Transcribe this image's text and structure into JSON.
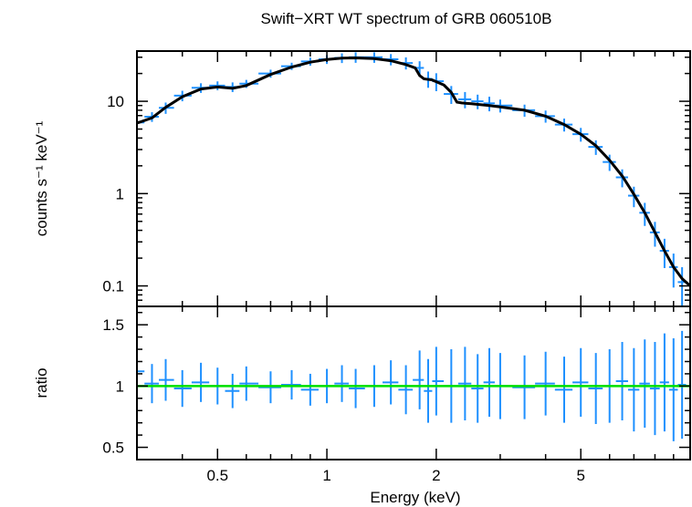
{
  "chart_data": {
    "type": "line",
    "title": "Swift−XRT WT spectrum of GRB 060510B",
    "xlabel": "Energy (keV)",
    "xscale": "log",
    "xlim": [
      0.3,
      10
    ],
    "x_ticks": [
      {
        "value": 0.5,
        "label": "0.5"
      },
      {
        "value": 1,
        "label": "1"
      },
      {
        "value": 2,
        "label": "2"
      },
      {
        "value": 5,
        "label": "5"
      }
    ],
    "panels": [
      {
        "ylabel": "counts s⁻¹ keV⁻¹",
        "yscale": "log",
        "ylim": [
          0.06,
          35
        ],
        "y_ticks": [
          {
            "value": 0.1,
            "label": "0.1"
          },
          {
            "value": 1,
            "label": "1"
          },
          {
            "value": 10,
            "label": "10"
          }
        ],
        "series": [
          {
            "role": "data",
            "color": "#1e90ff",
            "x": [
              0.3,
              0.33,
              0.36,
              0.4,
              0.45,
              0.5,
              0.55,
              0.6,
              0.7,
              0.8,
              0.9,
              1.0,
              1.1,
              1.2,
              1.35,
              1.5,
              1.65,
              1.8,
              1.9,
              2.0,
              2.2,
              2.4,
              2.6,
              2.8,
              3.0,
              3.5,
              4.0,
              4.5,
              5.0,
              5.5,
              6.0,
              6.5,
              7.0,
              7.5,
              8.0,
              8.5,
              9.0,
              9.5,
              10.0
            ],
            "y": [
              5.9,
              6.8,
              8.5,
              11.5,
              14.0,
              14.8,
              14.3,
              15.5,
              20.0,
              24.0,
              27.0,
              28.5,
              29.5,
              30.0,
              30.0,
              28.5,
              26.0,
              23.0,
              17.5,
              16.5,
              12.0,
              10.5,
              10.0,
              9.5,
              9.0,
              8.0,
              6.9,
              5.6,
              4.4,
              3.2,
              2.2,
              1.5,
              0.95,
              0.62,
              0.38,
              0.24,
              0.16,
              0.11,
              0.08
            ],
            "yerr_rel": [
              0.12,
              0.12,
              0.14,
              0.13,
              0.12,
              0.11,
              0.12,
              0.1,
              0.1,
              0.09,
              0.1,
              0.11,
              0.12,
              0.13,
              0.13,
              0.14,
              0.15,
              0.18,
              0.2,
              0.22,
              0.22,
              0.2,
              0.18,
              0.18,
              0.16,
              0.15,
              0.15,
              0.16,
              0.17,
              0.18,
              0.2,
              0.22,
              0.25,
              0.28,
              0.3,
              0.35,
              0.4,
              0.45,
              0.5
            ]
          },
          {
            "role": "model",
            "color": "#000000",
            "x": [
              0.3,
              0.33,
              0.36,
              0.4,
              0.45,
              0.5,
              0.55,
              0.6,
              0.7,
              0.8,
              0.9,
              1.0,
              1.1,
              1.2,
              1.35,
              1.5,
              1.65,
              1.75,
              1.8,
              1.85,
              1.95,
              2.1,
              2.2,
              2.28,
              2.35,
              2.5,
              2.8,
              3.0,
              3.5,
              4.0,
              4.5,
              5.0,
              5.5,
              6.0,
              6.5,
              7.0,
              7.5,
              8.0,
              8.5,
              9.0,
              9.5,
              10.0
            ],
            "y": [
              5.8,
              6.6,
              8.6,
              11.2,
              13.6,
              14.3,
              13.8,
              14.8,
              19.5,
              23.5,
              26.5,
              28.3,
              29.3,
              29.5,
              29.0,
              27.5,
              25.0,
              23.0,
              19.0,
              17.5,
              17.0,
              15.0,
              12.5,
              9.8,
              9.6,
              9.4,
              9.0,
              8.7,
              8.0,
              6.9,
              5.6,
              4.4,
              3.3,
              2.3,
              1.55,
              0.98,
              0.62,
              0.38,
              0.24,
              0.16,
              0.12,
              0.1
            ]
          }
        ]
      },
      {
        "ylabel": "ratio",
        "yscale": "linear",
        "ylim": [
          0.4,
          1.65
        ],
        "y_ticks": [
          {
            "value": 0.5,
            "label": "0.5"
          },
          {
            "value": 1,
            "label": "1"
          },
          {
            "value": 1.5,
            "label": "1.5"
          }
        ],
        "series": [
          {
            "role": "data",
            "color": "#1e90ff",
            "x": [
              0.3,
              0.33,
              0.36,
              0.4,
              0.45,
              0.5,
              0.55,
              0.6,
              0.7,
              0.8,
              0.9,
              1.0,
              1.1,
              1.2,
              1.35,
              1.5,
              1.65,
              1.8,
              1.9,
              2.0,
              2.2,
              2.4,
              2.6,
              2.8,
              3.0,
              3.5,
              4.0,
              4.5,
              5.0,
              5.5,
              6.0,
              6.5,
              7.0,
              7.5,
              8.0,
              8.5,
              9.0,
              9.5,
              10.0
            ],
            "y": [
              1.12,
              1.02,
              1.05,
              0.98,
              1.03,
              1.0,
              0.96,
              1.02,
              0.99,
              1.01,
              0.97,
              1.0,
              1.02,
              0.98,
              1.0,
              1.03,
              0.97,
              1.05,
              0.96,
              1.04,
              1.0,
              1.02,
              0.98,
              1.03,
              1.0,
              0.99,
              1.02,
              0.97,
              1.03,
              0.98,
              1.0,
              1.04,
              0.97,
              1.02,
              0.98,
              1.03,
              0.97,
              1.01,
              1.0
            ],
            "yerr": [
              0.18,
              0.16,
              0.17,
              0.15,
              0.16,
              0.15,
              0.14,
              0.14,
              0.13,
              0.12,
              0.13,
              0.14,
              0.15,
              0.16,
              0.17,
              0.18,
              0.2,
              0.24,
              0.26,
              0.28,
              0.3,
              0.3,
              0.28,
              0.28,
              0.27,
              0.26,
              0.26,
              0.27,
              0.28,
              0.29,
              0.3,
              0.32,
              0.34,
              0.36,
              0.38,
              0.4,
              0.42,
              0.44,
              0.46
            ]
          },
          {
            "role": "reference",
            "color": "#00e000",
            "x": [
              0.3,
              10.0
            ],
            "y": [
              1,
              1
            ]
          }
        ]
      }
    ]
  }
}
